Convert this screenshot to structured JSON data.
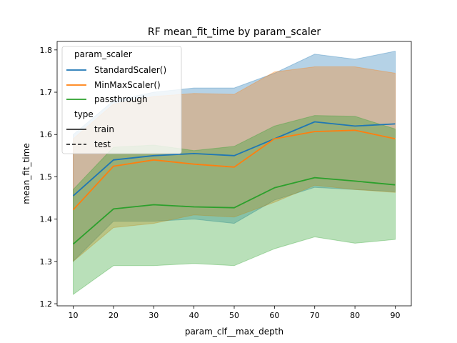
{
  "chart_data": {
    "type": "line",
    "title": "RF mean_fit_time by param_scaler",
    "xlabel": "param_clf__max_depth",
    "ylabel": "mean_fit_time",
    "xlim": [
      6,
      94
    ],
    "ylim": [
      1.195,
      1.82
    ],
    "x_ticks": [
      10,
      20,
      30,
      40,
      50,
      60,
      70,
      80,
      90
    ],
    "x_tick_labels": [
      "10",
      "20",
      "30",
      "40",
      "50",
      "60",
      "70",
      "80",
      "90"
    ],
    "y_ticks": [
      1.2,
      1.3,
      1.4,
      1.5,
      1.6,
      1.7,
      1.8
    ],
    "y_tick_labels": [
      "1.2",
      "1.3",
      "1.4",
      "1.5",
      "1.6",
      "1.7",
      "1.8"
    ],
    "grid": false,
    "legend": {
      "placement": "top-left",
      "hue_title": "param_scaler",
      "style_title": "type",
      "hue_entries": [
        {
          "label": "StandardScaler()",
          "color": "#1f77b4"
        },
        {
          "label": "MinMaxScaler()",
          "color": "#ff7f0e"
        },
        {
          "label": "passthrough",
          "color": "#2ca02c"
        }
      ],
      "style_entries": [
        {
          "label": "train",
          "dash": "solid"
        },
        {
          "label": "test",
          "dash": "dashed"
        }
      ]
    },
    "x": [
      10,
      20,
      30,
      40,
      50,
      60,
      70,
      80,
      90
    ],
    "series": [
      {
        "name": "StandardScaler()",
        "color": "#1f77b4",
        "values": [
          1.455,
          1.54,
          1.55,
          1.555,
          1.55,
          1.59,
          1.63,
          1.62,
          1.625
        ],
        "ci_upper": [
          1.6,
          1.68,
          1.7,
          1.71,
          1.71,
          1.745,
          1.79,
          1.778,
          1.797
        ],
        "ci_lower": [
          1.3,
          1.395,
          1.395,
          1.4,
          1.39,
          1.445,
          1.475,
          1.47,
          1.465
        ]
      },
      {
        "name": "MinMaxScaler()",
        "color": "#ff7f0e",
        "values": [
          1.422,
          1.525,
          1.54,
          1.53,
          1.523,
          1.59,
          1.607,
          1.61,
          1.59
        ],
        "ci_upper": [
          1.59,
          1.672,
          1.69,
          1.697,
          1.695,
          1.748,
          1.76,
          1.76,
          1.745
        ],
        "ci_lower": [
          1.3,
          1.38,
          1.39,
          1.41,
          1.405,
          1.44,
          1.48,
          1.47,
          1.463
        ]
      },
      {
        "name": "passthrough",
        "color": "#2ca02c",
        "values": [
          1.341,
          1.424,
          1.434,
          1.429,
          1.427,
          1.474,
          1.498,
          1.49,
          1.481
        ],
        "ci_upper": [
          1.47,
          1.57,
          1.575,
          1.562,
          1.572,
          1.62,
          1.645,
          1.643,
          1.613
        ],
        "ci_lower": [
          1.222,
          1.29,
          1.29,
          1.295,
          1.29,
          1.33,
          1.358,
          1.343,
          1.352
        ]
      }
    ]
  }
}
